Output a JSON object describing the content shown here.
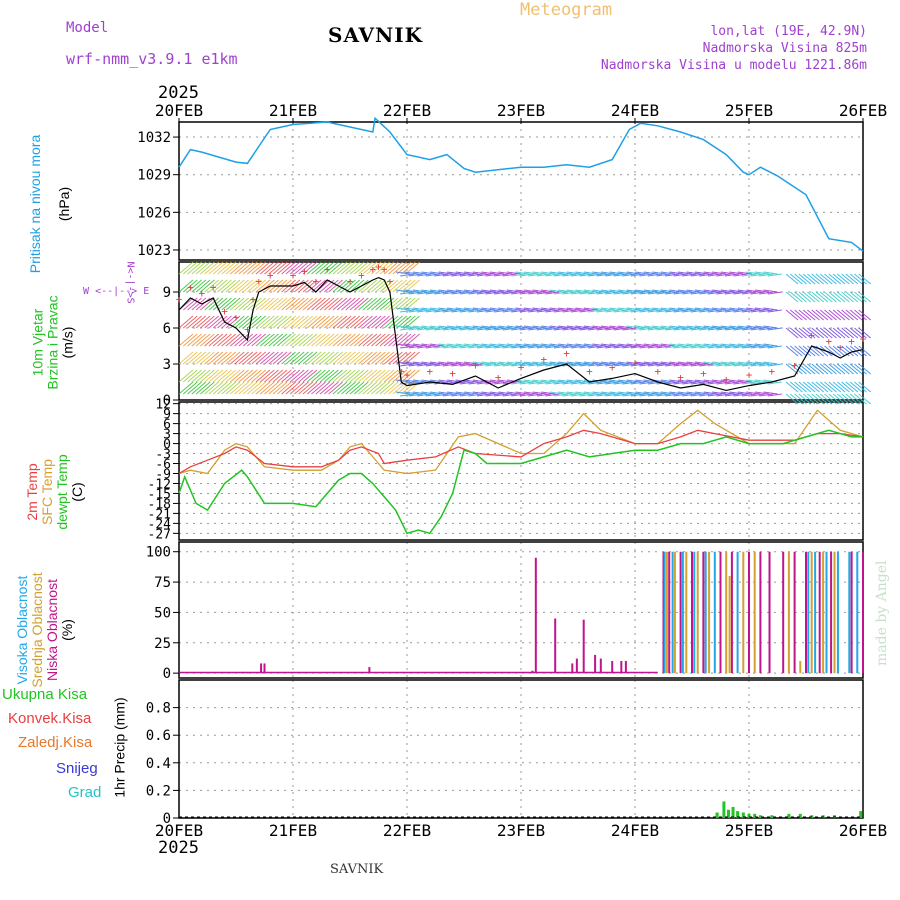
{
  "header": {
    "model_label": "Model",
    "model_value": "wrf-nmm_v3.9.1  e1km",
    "station": "SAVNIK",
    "product": "Meteogram",
    "lonlat": "lon,lat (19E, 42.9N)",
    "elevation": "Nadmorska Visina 825m",
    "model_elevation": "Nadmorska Visina u modelu 1221.86m",
    "year_top": "2025",
    "year_bottom": "2025",
    "footer_station": "SAVNIK",
    "credit": "made by Angel"
  },
  "colors": {
    "pressure": "#1ea0e6",
    "wind_speed": "#000000",
    "wind_gust_marks": "#e83c3c",
    "temp2m": "#e84040",
    "sfc_temp": "#d4a030",
    "dewpt": "#22c422",
    "high_cloud": "#20a8e8",
    "mid_cloud": "#d4a030",
    "low_cloud": "#c0148c",
    "precip_total": "#22c422",
    "frame": "#000000"
  },
  "wind_panel": {
    "compass_labels": [
      "W",
      "<--|-->",
      "E"
    ],
    "compass_vertical": "N<-|->S"
  },
  "chart_data": [
    {
      "type": "line",
      "name": "Pritisak na nivou mora",
      "ylabel_lines": [
        "Pritisak na nivou mora",
        "(hPa)"
      ],
      "x_ticks": [
        "20FEB",
        "21FEB",
        "22FEB",
        "23FEB",
        "24FEB",
        "25FEB",
        "26FEB"
      ],
      "x_days": [
        0,
        1,
        2,
        3,
        4,
        5,
        6
      ],
      "ylim": [
        1022.2,
        1033.2
      ],
      "yticks": [
        1023,
        1026,
        1029,
        1032
      ],
      "grid": true,
      "series": [
        {
          "x": [
            0,
            0.1,
            0.2,
            0.35,
            0.5,
            0.6,
            0.8,
            1.0,
            1.3,
            1.5,
            1.7,
            1.72,
            1.85,
            2.0,
            2.2,
            2.35,
            2.5,
            2.6,
            3.0,
            3.2,
            3.4,
            3.6,
            3.8,
            3.95,
            4.05,
            4.2,
            4.4,
            4.6,
            4.8,
            4.95,
            5.0,
            5.1,
            5.25,
            5.5,
            5.7,
            5.9,
            6.0
          ],
          "values": [
            1029.6,
            1031.0,
            1030.8,
            1030.4,
            1030.0,
            1029.9,
            1032.6,
            1033.0,
            1033.2,
            1032.8,
            1032.4,
            1033.5,
            1032.4,
            1030.6,
            1030.2,
            1030.6,
            1029.5,
            1029.2,
            1029.6,
            1029.6,
            1029.8,
            1029.6,
            1030.2,
            1032.6,
            1033.1,
            1032.9,
            1032.4,
            1031.8,
            1030.6,
            1029.2,
            1029.0,
            1029.6,
            1028.9,
            1027.4,
            1023.9,
            1023.6,
            1022.9
          ]
        }
      ]
    },
    {
      "type": "line",
      "name": "10m Vjetar",
      "ylabel_lines": [
        "10m Vjetar",
        "Brzina i Pravac",
        "(m/s)"
      ],
      "ylim": [
        0,
        11.5
      ],
      "yticks": [
        0,
        3,
        6,
        9
      ],
      "grid": true,
      "series": [
        {
          "name": "speed",
          "x": [
            0,
            0.1,
            0.2,
            0.3,
            0.4,
            0.5,
            0.6,
            0.65,
            0.7,
            0.8,
            1.0,
            1.1,
            1.2,
            1.3,
            1.5,
            1.6,
            1.7,
            1.75,
            1.8,
            1.85,
            1.95,
            2.0,
            2.2,
            2.4,
            2.6,
            2.8,
            3.0,
            3.2,
            3.4,
            3.6,
            3.8,
            4.0,
            4.2,
            4.4,
            4.6,
            4.8,
            5.0,
            5.2,
            5.4,
            5.55,
            5.7,
            5.8,
            5.9,
            6.0
          ],
          "values": [
            7.5,
            8.5,
            8.0,
            8.5,
            6.5,
            6.0,
            5.0,
            7.5,
            9.0,
            9.5,
            9.5,
            9.8,
            9.0,
            10.0,
            9.0,
            9.5,
            10.0,
            10.2,
            10.0,
            9.0,
            1.5,
            1.2,
            1.5,
            1.3,
            2.0,
            1.0,
            1.8,
            2.5,
            3.0,
            1.5,
            1.8,
            2.2,
            1.5,
            1.0,
            1.3,
            0.8,
            1.2,
            1.5,
            2.0,
            4.5,
            4.0,
            3.5,
            4.0,
            4.2
          ]
        }
      ]
    },
    {
      "type": "line",
      "name": "Temperature",
      "ylabel_lines": [
        "2m Temp",
        "SFC Temp",
        "dewpt Temp",
        "(C)"
      ],
      "ylim": [
        -29,
        12.5
      ],
      "yticks": [
        12,
        9,
        6,
        3,
        0,
        -3,
        -6,
        -9,
        -12,
        -15,
        -18,
        -21,
        -24,
        -27
      ],
      "grid": true,
      "series": [
        {
          "name": "2m Temp",
          "x": [
            0,
            0.1,
            0.25,
            0.4,
            0.5,
            0.6,
            0.75,
            1.0,
            1.25,
            1.4,
            1.5,
            1.6,
            1.75,
            1.8,
            2.0,
            2.25,
            2.45,
            2.6,
            3.0,
            3.2,
            3.4,
            3.55,
            3.7,
            4.0,
            4.2,
            4.4,
            4.55,
            4.7,
            5.0,
            5.2,
            5.4,
            5.6,
            5.8,
            6.0
          ],
          "values": [
            -9,
            -7,
            -5,
            -3,
            -1,
            -2,
            -6,
            -7,
            -7,
            -5,
            -2,
            -1,
            -3,
            -6,
            -5,
            -4,
            -1,
            -3,
            -4,
            0,
            2,
            4,
            3,
            0,
            0,
            2,
            4,
            3,
            1,
            1,
            1,
            3,
            3,
            2
          ]
        },
        {
          "name": "SFC Temp",
          "x": [
            0,
            0.1,
            0.25,
            0.4,
            0.5,
            0.6,
            0.75,
            1.0,
            1.25,
            1.4,
            1.5,
            1.6,
            1.75,
            1.8,
            2.0,
            2.25,
            2.45,
            2.6,
            3.0,
            3.2,
            3.4,
            3.55,
            3.7,
            4.0,
            4.2,
            4.4,
            4.55,
            4.7,
            5.0,
            5.2,
            5.4,
            5.6,
            5.8,
            6.0
          ],
          "values": [
            -9,
            -8,
            -9,
            -2,
            0,
            -1,
            -7,
            -8,
            -8,
            -5,
            -1,
            0,
            -6,
            -8,
            -9,
            -8,
            2,
            3,
            -3,
            -3,
            3,
            9,
            4,
            0,
            0,
            6,
            10,
            6,
            0,
            0,
            0,
            10,
            4,
            2
          ]
        },
        {
          "name": "dewpt Temp",
          "x": [
            0,
            0.05,
            0.15,
            0.25,
            0.4,
            0.55,
            0.6,
            0.75,
            1.0,
            1.2,
            1.4,
            1.5,
            1.6,
            1.7,
            1.8,
            1.9,
            2.0,
            2.1,
            2.2,
            2.3,
            2.4,
            2.5,
            2.6,
            2.7,
            3.0,
            3.2,
            3.4,
            3.6,
            3.8,
            4.0,
            4.2,
            4.4,
            4.6,
            4.8,
            5.0,
            5.3,
            5.5,
            5.7,
            5.9,
            6.0
          ],
          "values": [
            -15,
            -10,
            -18,
            -20,
            -12,
            -8,
            -10,
            -18,
            -18,
            -19,
            -11,
            -9,
            -9,
            -12,
            -16,
            -20,
            -27,
            -26,
            -27,
            -22,
            -15,
            -2,
            -3,
            -6,
            -6,
            -4,
            -2,
            -4,
            -3,
            -2,
            -2,
            0,
            0,
            2,
            0,
            0,
            2,
            4,
            2,
            2
          ]
        }
      ]
    },
    {
      "type": "bar",
      "name": "Oblacnost",
      "ylabel_lines": [
        "Visoka Oblacnost",
        "Srednja Oblacnost",
        "Niska Oblacnost",
        "(%)"
      ],
      "ylim": [
        -4,
        108
      ],
      "yticks": [
        0,
        25,
        50,
        75,
        100
      ],
      "grid": true,
      "series": [
        {
          "name": "Niska Oblacnost",
          "x": [
            0.6,
            0.72,
            0.75,
            1.67,
            3.1,
            3.13,
            3.3,
            3.45,
            3.49,
            3.55,
            3.65,
            3.7,
            3.8,
            3.88,
            3.92,
            4.25,
            4.3,
            4.4,
            4.5,
            4.6,
            4.75,
            4.85,
            5.0,
            5.1,
            5.18,
            5.3,
            5.4,
            5.5,
            5.62,
            5.72,
            5.9,
            6.0
          ],
          "values": [
            1,
            8,
            8,
            5,
            2,
            95,
            45,
            8,
            12,
            44,
            15,
            12,
            10,
            10,
            10,
            100,
            100,
            100,
            100,
            100,
            100,
            100,
            100,
            100,
            100,
            100,
            100,
            100,
            100,
            100,
            100,
            100
          ]
        },
        {
          "name": "Srednja Oblacnost",
          "x": [
            4.28,
            4.35,
            4.45,
            4.55,
            4.65,
            4.8,
            4.83,
            4.95,
            5.05,
            5.35,
            5.45,
            5.55,
            5.65,
            5.75
          ],
          "values": [
            100,
            100,
            100,
            100,
            100,
            100,
            80,
            100,
            100,
            100,
            10,
            100,
            100,
            100
          ]
        },
        {
          "name": "Visoka Oblacnost",
          "x": [
            4.26,
            4.33,
            4.42,
            4.52,
            4.62,
            4.7,
            4.9,
            5.52,
            5.58,
            5.68,
            5.78,
            5.88,
            5.95
          ],
          "values": [
            100,
            100,
            100,
            100,
            100,
            100,
            100,
            100,
            100,
            100,
            100,
            100,
            100
          ]
        }
      ]
    },
    {
      "type": "bar",
      "name": "1hr Precip",
      "ylabel_lines": [
        "1hr Precip (mm)"
      ],
      "ylim": [
        0,
        1.0
      ],
      "yticks": [
        0,
        0.2,
        0.4,
        0.6,
        0.8
      ],
      "grid": true,
      "legend": [
        "Ukupna Kisa",
        "Konvek.Kisa",
        "Zaledj.Kisa",
        "Snijeg",
        "Grad"
      ],
      "legend_colors": [
        "#22c422",
        "#e84040",
        "#e8782a",
        "#3838d8",
        "#22c4c4"
      ],
      "series": [
        {
          "name": "Ukupna Kisa",
          "x": [
            4.72,
            4.78,
            4.82,
            4.86,
            4.9,
            4.95,
            5.0,
            5.05,
            5.1,
            5.2,
            5.35,
            5.45,
            5.55,
            5.65,
            5.75,
            5.98
          ],
          "values": [
            0.04,
            0.12,
            0.06,
            0.08,
            0.05,
            0.04,
            0.03,
            0.03,
            0.02,
            0.02,
            0.03,
            0.03,
            0.02,
            0.02,
            0.02,
            0.05
          ]
        }
      ]
    }
  ]
}
